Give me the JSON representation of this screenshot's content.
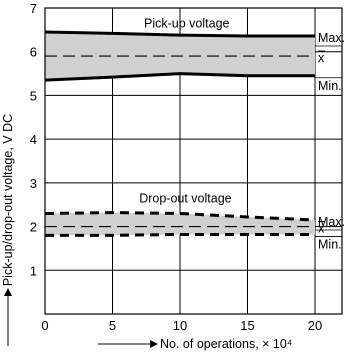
{
  "chart_data": {
    "type": "line",
    "xlabel": "No. of operations, × 10⁴",
    "ylabel": "Pick-up/drop-out voltage, V DC",
    "xlim": [
      0,
      22
    ],
    "ylim": [
      0,
      7
    ],
    "x_ticks": [
      "0",
      "5",
      "10",
      "15",
      "20"
    ],
    "y_ticks": [
      "1",
      "2",
      "3",
      "4",
      "5",
      "6",
      "7"
    ],
    "grid": true,
    "bands": [
      {
        "name": "Pick-up voltage",
        "x": [
          0,
          5,
          10,
          15,
          20
        ],
        "max": [
          6.45,
          6.42,
          6.38,
          6.36,
          6.36
        ],
        "mean": [
          5.9,
          5.9,
          5.9,
          5.9,
          5.9
        ],
        "min": [
          5.35,
          5.42,
          5.5,
          5.45,
          5.45
        ],
        "line_style": "solid"
      },
      {
        "name": "Drop-out voltage",
        "x": [
          0,
          5,
          10,
          15,
          20
        ],
        "max": [
          2.3,
          2.32,
          2.3,
          2.22,
          2.15
        ],
        "mean": [
          2.0,
          2.0,
          2.0,
          2.0,
          2.0
        ],
        "min": [
          1.8,
          1.8,
          1.82,
          1.82,
          1.82
        ],
        "line_style": "dashed"
      }
    ],
    "end_labels": {
      "max": "Max.",
      "mean": "x",
      "min": "Min."
    },
    "colors": {
      "band_fill": "#d0d0d0",
      "line": "#000000",
      "grid": "#000000"
    }
  }
}
